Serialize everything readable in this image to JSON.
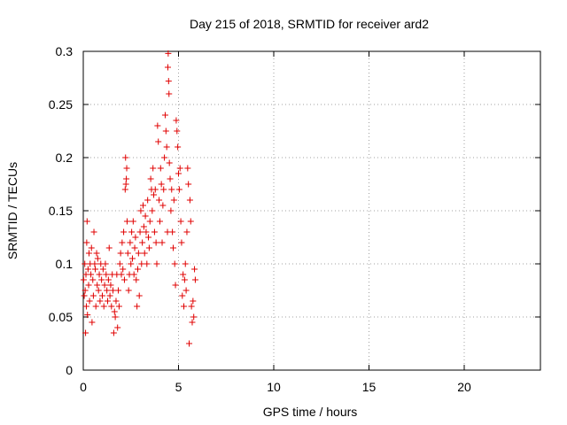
{
  "chart_data": {
    "type": "scatter",
    "title": "Day 215 of 2018, SRMTID for receiver ard2",
    "xlabel": "GPS time / hours",
    "ylabel": "SRMTID / TECUs",
    "xlim": [
      0,
      24
    ],
    "ylim": [
      0,
      0.3
    ],
    "xticks": [
      0,
      5,
      10,
      15,
      20
    ],
    "xtick_labels": [
      "0",
      "5",
      "10",
      "15",
      "20"
    ],
    "yticks": [
      0,
      0.05,
      0.1,
      0.15,
      0.2,
      0.25,
      0.3
    ],
    "ytick_labels": [
      "0",
      "0.05",
      "0.1",
      "0.15",
      "0.2",
      "0.25",
      "0.3"
    ],
    "grid": true,
    "marker": "+",
    "color": "#e00000",
    "series": [
      {
        "name": "SRMTID",
        "points": [
          [
            0.02,
            0.085
          ],
          [
            0.05,
            0.07
          ],
          [
            0.08,
            0.1
          ],
          [
            0.1,
            0.075
          ],
          [
            0.12,
            0.035
          ],
          [
            0.14,
            0.09
          ],
          [
            0.16,
            0.06
          ],
          [
            0.18,
            0.12
          ],
          [
            0.2,
            0.14
          ],
          [
            0.22,
            0.052
          ],
          [
            0.25,
            0.095
          ],
          [
            0.28,
            0.08
          ],
          [
            0.3,
            0.11
          ],
          [
            0.33,
            0.065
          ],
          [
            0.36,
            0.1
          ],
          [
            0.4,
            0.09
          ],
          [
            0.43,
            0.115
          ],
          [
            0.46,
            0.045
          ],
          [
            0.5,
            0.085
          ],
          [
            0.53,
            0.07
          ],
          [
            0.56,
            0.13
          ],
          [
            0.6,
            0.1
          ],
          [
            0.63,
            0.095
          ],
          [
            0.66,
            0.06
          ],
          [
            0.7,
            0.11
          ],
          [
            0.73,
            0.08
          ],
          [
            0.76,
            0.105
          ],
          [
            0.8,
            0.075
          ],
          [
            0.84,
            0.09
          ],
          [
            0.88,
            0.065
          ],
          [
            0.92,
            0.1
          ],
          [
            0.96,
            0.085
          ],
          [
            1.0,
            0.07
          ],
          [
            1.04,
            0.095
          ],
          [
            1.08,
            0.06
          ],
          [
            1.12,
            0.08
          ],
          [
            1.16,
            0.1
          ],
          [
            1.2,
            0.09
          ],
          [
            1.24,
            0.075
          ],
          [
            1.28,
            0.065
          ],
          [
            1.32,
            0.085
          ],
          [
            1.36,
            0.115
          ],
          [
            1.4,
            0.07
          ],
          [
            1.44,
            0.08
          ],
          [
            1.48,
            0.06
          ],
          [
            1.52,
            0.09
          ],
          [
            1.56,
            0.075
          ],
          [
            1.6,
            0.035
          ],
          [
            1.64,
            0.055
          ],
          [
            1.68,
            0.05
          ],
          [
            1.72,
            0.065
          ],
          [
            1.76,
            0.09
          ],
          [
            1.8,
            0.04
          ],
          [
            1.84,
            0.075
          ],
          [
            1.88,
            0.06
          ],
          [
            1.92,
            0.1
          ],
          [
            1.96,
            0.11
          ],
          [
            2.0,
            0.09
          ],
          [
            2.04,
            0.12
          ],
          [
            2.08,
            0.095
          ],
          [
            2.12,
            0.13
          ],
          [
            2.16,
            0.085
          ],
          [
            2.2,
            0.17
          ],
          [
            2.22,
            0.2
          ],
          [
            2.24,
            0.175
          ],
          [
            2.26,
            0.18
          ],
          [
            2.28,
            0.19
          ],
          [
            2.3,
            0.14
          ],
          [
            2.34,
            0.11
          ],
          [
            2.38,
            0.075
          ],
          [
            2.42,
            0.09
          ],
          [
            2.46,
            0.12
          ],
          [
            2.5,
            0.1
          ],
          [
            2.54,
            0.13
          ],
          [
            2.58,
            0.105
          ],
          [
            2.62,
            0.14
          ],
          [
            2.66,
            0.09
          ],
          [
            2.7,
            0.115
          ],
          [
            2.74,
            0.125
          ],
          [
            2.78,
            0.085
          ],
          [
            2.82,
            0.06
          ],
          [
            2.86,
            0.095
          ],
          [
            2.9,
            0.11
          ],
          [
            2.94,
            0.07
          ],
          [
            2.98,
            0.13
          ],
          [
            3.02,
            0.15
          ],
          [
            3.06,
            0.1
          ],
          [
            3.1,
            0.12
          ],
          [
            3.14,
            0.155
          ],
          [
            3.18,
            0.135
          ],
          [
            3.22,
            0.11
          ],
          [
            3.26,
            0.145
          ],
          [
            3.3,
            0.13
          ],
          [
            3.34,
            0.1
          ],
          [
            3.38,
            0.16
          ],
          [
            3.42,
            0.125
          ],
          [
            3.46,
            0.115
          ],
          [
            3.5,
            0.14
          ],
          [
            3.54,
            0.18
          ],
          [
            3.58,
            0.17
          ],
          [
            3.62,
            0.15
          ],
          [
            3.66,
            0.19
          ],
          [
            3.7,
            0.165
          ],
          [
            3.74,
            0.13
          ],
          [
            3.78,
            0.17
          ],
          [
            3.82,
            0.12
          ],
          [
            3.86,
            0.1
          ],
          [
            3.9,
            0.23
          ],
          [
            3.94,
            0.215
          ],
          [
            3.98,
            0.16
          ],
          [
            4.02,
            0.14
          ],
          [
            4.06,
            0.19
          ],
          [
            4.1,
            0.175
          ],
          [
            4.14,
            0.12
          ],
          [
            4.18,
            0.155
          ],
          [
            4.22,
            0.17
          ],
          [
            4.26,
            0.2
          ],
          [
            4.3,
            0.24
          ],
          [
            4.34,
            0.225
          ],
          [
            4.38,
            0.21
          ],
          [
            4.42,
            0.13
          ],
          [
            4.44,
            0.285
          ],
          [
            4.46,
            0.298
          ],
          [
            4.48,
            0.272
          ],
          [
            4.5,
            0.26
          ],
          [
            4.52,
            0.195
          ],
          [
            4.56,
            0.18
          ],
          [
            4.6,
            0.15
          ],
          [
            4.64,
            0.17
          ],
          [
            4.68,
            0.13
          ],
          [
            4.72,
            0.115
          ],
          [
            4.76,
            0.16
          ],
          [
            4.8,
            0.1
          ],
          [
            4.84,
            0.08
          ],
          [
            4.88,
            0.235
          ],
          [
            4.92,
            0.225
          ],
          [
            4.96,
            0.21
          ],
          [
            5.0,
            0.185
          ],
          [
            5.04,
            0.17
          ],
          [
            5.08,
            0.19
          ],
          [
            5.12,
            0.14
          ],
          [
            5.16,
            0.12
          ],
          [
            5.2,
            0.07
          ],
          [
            5.24,
            0.09
          ],
          [
            5.28,
            0.06
          ],
          [
            5.32,
            0.085
          ],
          [
            5.36,
            0.1
          ],
          [
            5.4,
            0.075
          ],
          [
            5.44,
            0.13
          ],
          [
            5.48,
            0.19
          ],
          [
            5.52,
            0.175
          ],
          [
            5.56,
            0.025
          ],
          [
            5.6,
            0.16
          ],
          [
            5.64,
            0.14
          ],
          [
            5.68,
            0.06
          ],
          [
            5.72,
            0.045
          ],
          [
            5.76,
            0.065
          ],
          [
            5.8,
            0.05
          ],
          [
            5.84,
            0.095
          ],
          [
            5.88,
            0.085
          ]
        ]
      }
    ]
  }
}
